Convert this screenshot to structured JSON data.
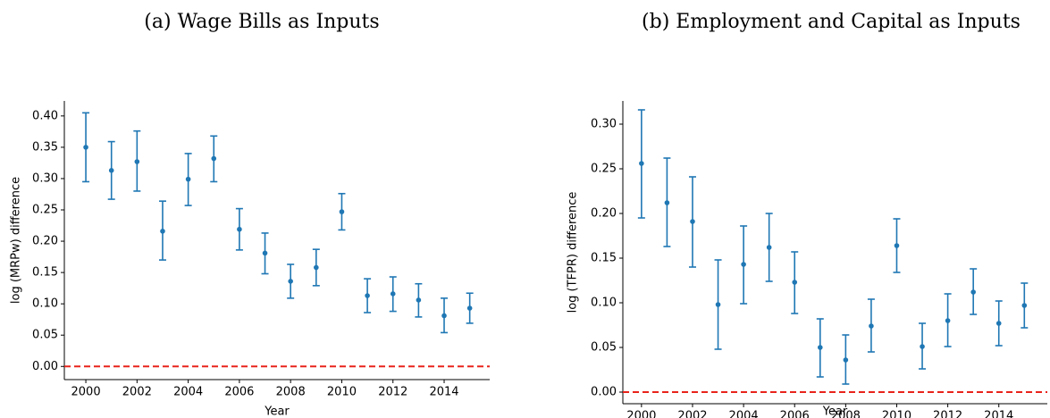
{
  "chart_data": [
    {
      "type": "errorbar",
      "title": "(a) Wage Bills as Inputs",
      "x_label": "Year",
      "y_label": "log (MRPw) difference",
      "x": [
        2000,
        2001,
        2002,
        2003,
        2004,
        2005,
        2006,
        2007,
        2008,
        2009,
        2010,
        2011,
        2012,
        2013,
        2014,
        2015
      ],
      "values": [
        0.35,
        0.313,
        0.327,
        0.216,
        0.299,
        0.332,
        0.219,
        0.181,
        0.136,
        0.158,
        0.247,
        0.113,
        0.116,
        0.106,
        0.081,
        0.093
      ],
      "lower": [
        0.295,
        0.267,
        0.28,
        0.17,
        0.257,
        0.295,
        0.186,
        0.148,
        0.109,
        0.129,
        0.218,
        0.086,
        0.088,
        0.079,
        0.054,
        0.069
      ],
      "upper": [
        0.405,
        0.359,
        0.376,
        0.264,
        0.34,
        0.368,
        0.252,
        0.213,
        0.163,
        0.187,
        0.276,
        0.14,
        0.143,
        0.132,
        0.109,
        0.117
      ],
      "color": "#1f77b4",
      "hline": 0,
      "hline_color": "#e8231b",
      "xlim": [
        1999.16,
        2015.78
      ],
      "ylim": [
        -0.021,
        0.424
      ],
      "xticks": [
        2000,
        2002,
        2004,
        2006,
        2008,
        2010,
        2012,
        2014
      ],
      "yticks": [
        {
          "value": 0,
          "label": "0.00"
        },
        {
          "value": 0.05,
          "label": "0.05"
        },
        {
          "value": 0.1,
          "label": "0.10"
        },
        {
          "value": 0.15,
          "label": "0.15"
        },
        {
          "value": 0.2,
          "label": "0.20"
        },
        {
          "value": 0.25,
          "label": "0.25"
        },
        {
          "value": 0.3,
          "label": "0.30"
        },
        {
          "value": 0.35,
          "label": "0.35"
        },
        {
          "value": 0.4,
          "label": "0.40"
        }
      ]
    },
    {
      "type": "errorbar",
      "title": "(b) Employment and Capital as Inputs",
      "x_label": "Year",
      "y_label": "log (TFPR) difference",
      "x": [
        2000,
        2001,
        2002,
        2003,
        2004,
        2005,
        2006,
        2007,
        2008,
        2009,
        2010,
        2011,
        2012,
        2013,
        2014,
        2015
      ],
      "values": [
        0.256,
        0.212,
        0.191,
        0.098,
        0.143,
        0.162,
        0.123,
        0.05,
        0.036,
        0.074,
        0.164,
        0.051,
        0.08,
        0.112,
        0.077,
        0.097
      ],
      "lower": [
        0.195,
        0.163,
        0.14,
        0.048,
        0.099,
        0.124,
        0.088,
        0.017,
        0.009,
        0.045,
        0.134,
        0.026,
        0.051,
        0.087,
        0.052,
        0.072
      ],
      "upper": [
        0.316,
        0.262,
        0.241,
        0.148,
        0.186,
        0.2,
        0.157,
        0.082,
        0.064,
        0.104,
        0.194,
        0.077,
        0.11,
        0.138,
        0.102,
        0.122
      ],
      "color": "#1f77b4",
      "hline": 0,
      "hline_color": "#e8231b",
      "xlim": [
        1999.27,
        2015.9
      ],
      "ylim": [
        -0.013,
        0.326
      ],
      "xticks": [
        2000,
        2002,
        2004,
        2006,
        2008,
        2010,
        2012,
        2014
      ],
      "yticks": [
        {
          "value": 0,
          "label": "0.00"
        },
        {
          "value": 0.05,
          "label": "0.05"
        },
        {
          "value": 0.1,
          "label": "0.10"
        },
        {
          "value": 0.15,
          "label": "0.15"
        },
        {
          "value": 0.2,
          "label": "0.20"
        },
        {
          "value": 0.25,
          "label": "0.25"
        },
        {
          "value": 0.3,
          "label": "0.30"
        }
      ]
    }
  ]
}
